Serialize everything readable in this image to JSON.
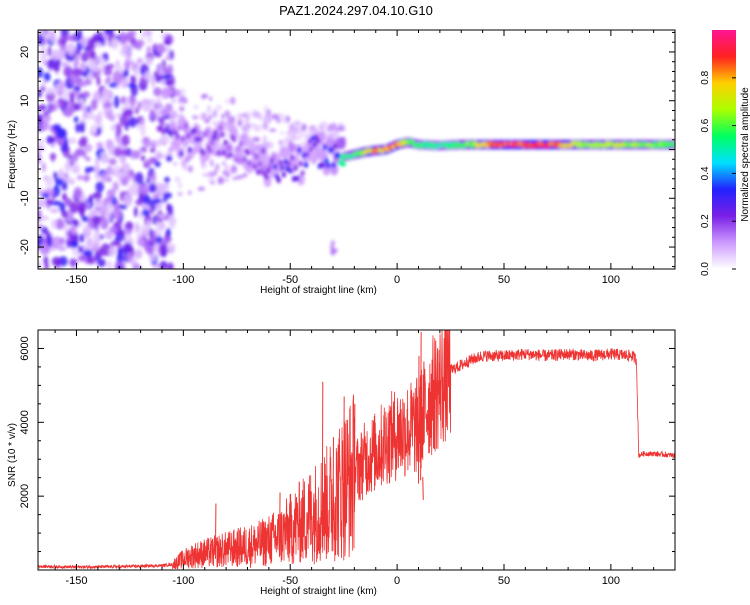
{
  "figure": {
    "title": "PAZ1.2024.297.04.10.G10"
  },
  "chart_data": [
    {
      "type": "heatmap",
      "title": "PAZ1.2024.297.04.10.G10",
      "xlabel": "Height of straight line (km)",
      "ylabel": "Frequency (Hz)",
      "xlim": [
        -168,
        130
      ],
      "ylim": [
        -24.5,
        24.5
      ],
      "x_ticks": [
        -150,
        -100,
        -50,
        0,
        50,
        100
      ],
      "y_ticks": [
        -20,
        -10,
        0,
        10,
        20
      ],
      "colorbar": {
        "label": "Normalized spectral amplitude",
        "range": [
          0,
          1
        ],
        "ticks": [
          "0.0",
          "0.2",
          "0.4",
          "0.6",
          "0.8"
        ],
        "colors": [
          "#ffffff",
          "#cc99ff",
          "#7a1fe6",
          "#2222ff",
          "#00e0ff",
          "#00ff60",
          "#aaff00",
          "#ffd000",
          "#ff2020",
          "#ff1493"
        ]
      },
      "noise_region_x": [
        -168,
        -105
      ],
      "ridge": [
        {
          "x": -105,
          "freq": 2.0,
          "amp": 0.22
        },
        {
          "x": -95,
          "freq": 2.0,
          "amp": 0.22
        },
        {
          "x": -85,
          "freq": 2.0,
          "amp": 0.2
        },
        {
          "x": -75,
          "freq": 1.0,
          "amp": 0.18
        },
        {
          "x": -65,
          "freq": -3.0,
          "amp": 0.2
        },
        {
          "x": -55,
          "freq": -4.0,
          "amp": 0.25
        },
        {
          "x": -45,
          "freq": -3.0,
          "amp": 0.28
        },
        {
          "x": -38,
          "freq": 0.0,
          "amp": 0.3
        },
        {
          "x": -30,
          "freq": -2.0,
          "amp": 0.35
        },
        {
          "x": -25,
          "freq": -1.5,
          "amp": 0.5
        },
        {
          "x": -20,
          "freq": -1.0,
          "amp": 0.55
        },
        {
          "x": -15,
          "freq": -0.5,
          "amp": 0.7
        },
        {
          "x": -10,
          "freq": -0.2,
          "amp": 0.8
        },
        {
          "x": -5,
          "freq": 0.0,
          "amp": 0.85
        },
        {
          "x": 0,
          "freq": 1.0,
          "amp": 0.85
        },
        {
          "x": 5,
          "freq": 1.5,
          "amp": 0.6
        },
        {
          "x": 10,
          "freq": 1.0,
          "amp": 0.55
        },
        {
          "x": 20,
          "freq": 0.8,
          "amp": 0.5
        },
        {
          "x": 30,
          "freq": 1.0,
          "amp": 0.55
        },
        {
          "x": 40,
          "freq": 1.0,
          "amp": 0.75
        },
        {
          "x": 50,
          "freq": 1.0,
          "amp": 0.9
        },
        {
          "x": 60,
          "freq": 1.0,
          "amp": 0.92
        },
        {
          "x": 70,
          "freq": 1.0,
          "amp": 0.9
        },
        {
          "x": 80,
          "freq": 1.0,
          "amp": 0.75
        },
        {
          "x": 90,
          "freq": 1.0,
          "amp": 0.6
        },
        {
          "x": 100,
          "freq": 1.0,
          "amp": 0.7
        },
        {
          "x": 110,
          "freq": 1.0,
          "amp": 0.65
        },
        {
          "x": 120,
          "freq": 1.0,
          "amp": 0.6
        },
        {
          "x": 130,
          "freq": 1.0,
          "amp": 0.6
        }
      ]
    },
    {
      "type": "line",
      "xlabel": "Height of straight line (km)",
      "ylabel": "SNR (10 * v/v)",
      "xlim": [
        -168,
        130
      ],
      "ylim": [
        0,
        6500
      ],
      "x_ticks": [
        -150,
        -100,
        -50,
        0,
        50,
        100
      ],
      "y_ticks": [
        2000,
        4000,
        6000
      ],
      "color": "#ee3333",
      "series": [
        {
          "x": [
            -168,
            -150,
            -130,
            -110,
            -105,
            -100,
            -95,
            -90,
            -85,
            -80,
            -75,
            -70,
            -65,
            -60,
            -55,
            -50,
            -45,
            -40,
            -35,
            -30,
            -25,
            -20,
            -15,
            -10,
            -5,
            0,
            5,
            10,
            12,
            15,
            20,
            25,
            30,
            35,
            40,
            50,
            60,
            70,
            80,
            90,
            100,
            110,
            112,
            113,
            115,
            120,
            130
          ],
          "values": [
            100,
            80,
            90,
            120,
            150,
            300,
            400,
            450,
            500,
            550,
            600,
            650,
            700,
            800,
            900,
            1100,
            1300,
            1500,
            1700,
            1900,
            2300,
            2600,
            3000,
            3200,
            3500,
            3700,
            3800,
            3900,
            4200,
            4600,
            5000,
            5400,
            5550,
            5700,
            5800,
            5800,
            5850,
            5800,
            5850,
            5800,
            5850,
            5800,
            5700,
            3100,
            3150,
            3150,
            3100
          ]
        }
      ],
      "spikes": [
        {
          "x": -85,
          "value": 1800
        },
        {
          "x": -55,
          "value": 2100
        },
        {
          "x": -35,
          "value": 5100
        },
        {
          "x": -30,
          "value": 3600
        },
        {
          "x": -25,
          "value": 4700
        },
        {
          "x": -20,
          "value": 4500
        },
        {
          "x": 10,
          "value": 5800
        },
        {
          "x": 11,
          "value": 6450
        },
        {
          "x": 12,
          "value": 1900
        }
      ]
    }
  ]
}
